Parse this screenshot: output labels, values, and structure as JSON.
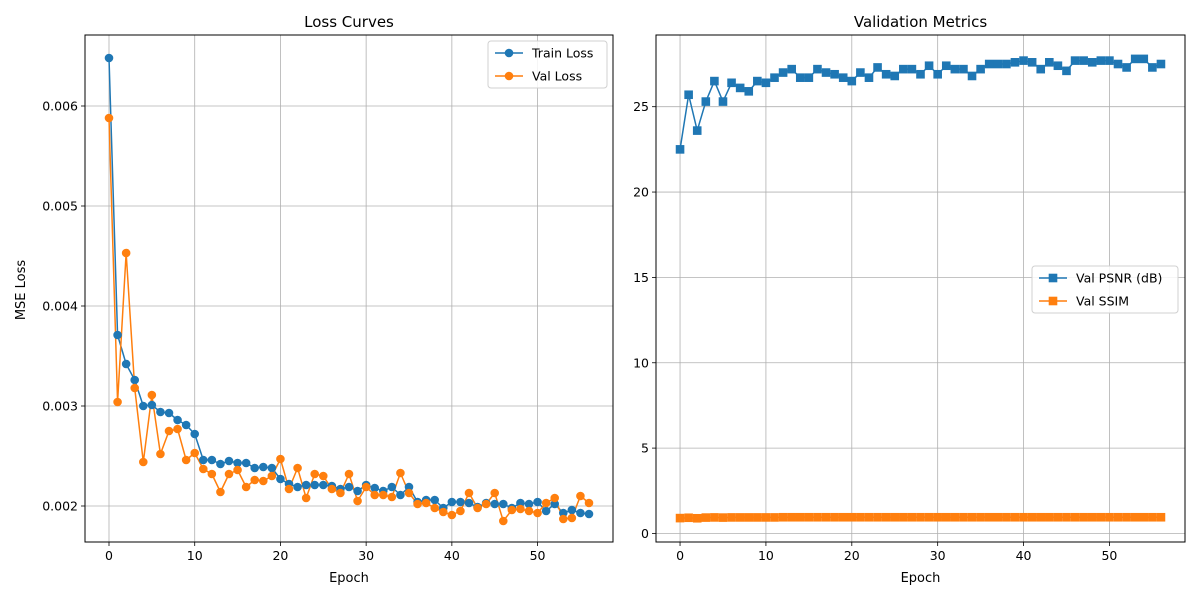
{
  "colors": {
    "blue": "#1f77b4",
    "orange": "#ff7f0e",
    "grid": "#b0b0b0"
  },
  "chart_data": [
    {
      "type": "line",
      "title": "Loss Curves",
      "xlabel": "Epoch",
      "ylabel": "MSE Loss",
      "xlim": [
        -2.8,
        58.8
      ],
      "ylim": [
        0.00164,
        0.00671
      ],
      "xticks": [
        "0",
        "10",
        "20",
        "30",
        "40",
        "50"
      ],
      "xtick_values": [
        0,
        10,
        20,
        30,
        40,
        50
      ],
      "yticks": [
        "0.002",
        "0.003",
        "0.004",
        "0.005",
        "0.006"
      ],
      "ytick_values": [
        0.002,
        0.003,
        0.004,
        0.005,
        0.006
      ],
      "grid": true,
      "marker": "circle",
      "legend_position": "top-right",
      "x": [
        0,
        1,
        2,
        3,
        4,
        5,
        6,
        7,
        8,
        9,
        10,
        11,
        12,
        13,
        14,
        15,
        16,
        17,
        18,
        19,
        20,
        21,
        22,
        23,
        24,
        25,
        26,
        27,
        28,
        29,
        30,
        31,
        32,
        33,
        34,
        35,
        36,
        37,
        38,
        39,
        40,
        41,
        42,
        43,
        44,
        45,
        46,
        47,
        48,
        49,
        50,
        51,
        52,
        53,
        54,
        55,
        56
      ],
      "series": [
        {
          "name": "Train Loss",
          "color": "#1f77b4",
          "values": [
            0.00648,
            0.00371,
            0.00342,
            0.00326,
            0.003,
            0.00301,
            0.00294,
            0.00293,
            0.00286,
            0.00281,
            0.00272,
            0.00246,
            0.00246,
            0.00242,
            0.00245,
            0.00243,
            0.00243,
            0.00238,
            0.00239,
            0.00238,
            0.00227,
            0.00222,
            0.00219,
            0.00221,
            0.00221,
            0.00221,
            0.0022,
            0.00217,
            0.00219,
            0.00215,
            0.00221,
            0.00218,
            0.00215,
            0.00219,
            0.00211,
            0.00219,
            0.00204,
            0.00206,
            0.00206,
            0.00198,
            0.00204,
            0.00204,
            0.00203,
            0.00199,
            0.00203,
            0.00202,
            0.00202,
            0.00198,
            0.00203,
            0.00202,
            0.00204,
            0.00195,
            0.00202,
            0.00193,
            0.00196,
            0.00193,
            0.00192
          ]
        },
        {
          "name": "Val Loss",
          "color": "#ff7f0e",
          "values": [
            0.00588,
            0.00304,
            0.00453,
            0.00318,
            0.00244,
            0.00311,
            0.00252,
            0.00275,
            0.00277,
            0.00246,
            0.00253,
            0.00237,
            0.00232,
            0.00214,
            0.00232,
            0.00236,
            0.00219,
            0.00226,
            0.00225,
            0.0023,
            0.00247,
            0.00217,
            0.00238,
            0.00208,
            0.00232,
            0.0023,
            0.00217,
            0.00213,
            0.00232,
            0.00205,
            0.00219,
            0.00211,
            0.00211,
            0.00209,
            0.00233,
            0.00213,
            0.00202,
            0.00203,
            0.00198,
            0.00194,
            0.00191,
            0.00195,
            0.00213,
            0.00198,
            0.00202,
            0.00213,
            0.00185,
            0.00196,
            0.00197,
            0.00195,
            0.00193,
            0.00203,
            0.00208,
            0.00187,
            0.00188,
            0.0021,
            0.00203
          ]
        }
      ]
    },
    {
      "type": "line",
      "title": "Validation Metrics",
      "xlabel": "Epoch",
      "ylabel": "",
      "xlim": [
        -2.8,
        58.8
      ],
      "ylim": [
        -0.5,
        29.2
      ],
      "xticks": [
        "0",
        "10",
        "20",
        "30",
        "40",
        "50"
      ],
      "xtick_values": [
        0,
        10,
        20,
        30,
        40,
        50
      ],
      "yticks": [
        "0",
        "5",
        "10",
        "15",
        "20",
        "25"
      ],
      "ytick_values": [
        0,
        5,
        10,
        15,
        20,
        25
      ],
      "grid": true,
      "marker": "square",
      "legend_position": "center-right",
      "x": [
        0,
        1,
        2,
        3,
        4,
        5,
        6,
        7,
        8,
        9,
        10,
        11,
        12,
        13,
        14,
        15,
        16,
        17,
        18,
        19,
        20,
        21,
        22,
        23,
        24,
        25,
        26,
        27,
        28,
        29,
        30,
        31,
        32,
        33,
        34,
        35,
        36,
        37,
        38,
        39,
        40,
        41,
        42,
        43,
        44,
        45,
        46,
        47,
        48,
        49,
        50,
        51,
        52,
        53,
        54,
        55,
        56
      ],
      "series": [
        {
          "name": "Val PSNR (dB)",
          "color": "#1f77b4",
          "values": [
            22.5,
            25.7,
            23.6,
            25.3,
            26.5,
            25.3,
            26.4,
            26.1,
            25.9,
            26.5,
            26.4,
            26.7,
            27.0,
            27.2,
            26.7,
            26.7,
            27.2,
            27.0,
            26.9,
            26.7,
            26.5,
            27.0,
            26.7,
            27.3,
            26.9,
            26.8,
            27.2,
            27.2,
            26.9,
            27.4,
            26.9,
            27.4,
            27.2,
            27.2,
            26.8,
            27.2,
            27.5,
            27.5,
            27.5,
            27.6,
            27.7,
            27.6,
            27.2,
            27.6,
            27.4,
            27.1,
            27.7,
            27.7,
            27.6,
            27.7,
            27.7,
            27.5,
            27.3,
            27.8,
            27.8,
            27.3,
            27.5
          ]
        },
        {
          "name": "Val SSIM",
          "color": "#ff7f0e",
          "values": [
            0.9,
            0.92,
            0.89,
            0.93,
            0.94,
            0.93,
            0.94,
            0.94,
            0.94,
            0.94,
            0.94,
            0.94,
            0.95,
            0.95,
            0.95,
            0.95,
            0.95,
            0.95,
            0.95,
            0.95,
            0.95,
            0.95,
            0.95,
            0.95,
            0.95,
            0.95,
            0.95,
            0.95,
            0.95,
            0.95,
            0.95,
            0.95,
            0.95,
            0.95,
            0.95,
            0.95,
            0.95,
            0.95,
            0.95,
            0.95,
            0.95,
            0.95,
            0.95,
            0.95,
            0.95,
            0.95,
            0.95,
            0.95,
            0.95,
            0.95,
            0.95,
            0.95,
            0.95,
            0.95,
            0.95,
            0.95,
            0.95
          ]
        }
      ]
    }
  ]
}
